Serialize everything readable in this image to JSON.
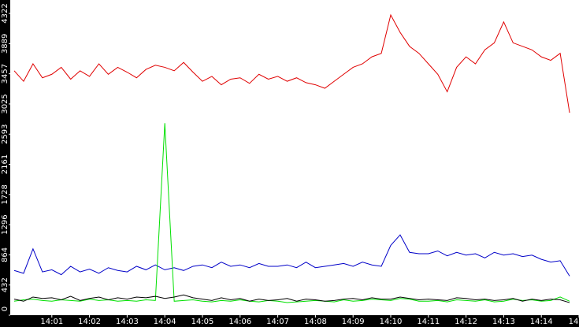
{
  "chart_data": {
    "type": "line",
    "x": [
      840,
      840.25,
      840.5,
      840.75,
      841,
      841.25,
      841.5,
      841.75,
      842,
      842.25,
      842.5,
      842.75,
      843,
      843.25,
      843.5,
      843.75,
      844,
      844.25,
      844.5,
      844.75,
      845,
      845.25,
      845.5,
      845.75,
      846,
      846.25,
      846.5,
      846.75,
      847,
      847.25,
      847.5,
      847.75,
      848,
      848.25,
      848.5,
      848.75,
      849,
      849.25,
      849.5,
      849.75,
      850,
      850.25,
      850.5,
      850.75,
      851,
      851.25,
      851.5,
      851.75,
      852,
      852.25,
      852.5,
      852.75,
      853,
      853.25,
      853.5,
      853.75,
      854,
      854.25,
      854.5,
      854.75
    ],
    "series": [
      {
        "color": "#e00000",
        "values": [
          3500,
          3350,
          3600,
          3400,
          3450,
          3550,
          3380,
          3500,
          3420,
          3600,
          3450,
          3550,
          3480,
          3400,
          3520,
          3580,
          3550,
          3500,
          3620,
          3480,
          3350,
          3420,
          3300,
          3380,
          3400,
          3320,
          3450,
          3380,
          3420,
          3350,
          3400,
          3330,
          3300,
          3250,
          3350,
          3450,
          3550,
          3600,
          3700,
          3750,
          4300,
          4050,
          3850,
          3750,
          3600,
          3450,
          3200,
          3550,
          3700,
          3600,
          3800,
          3900,
          4200,
          3900,
          3850,
          3800,
          3700,
          3650,
          3750,
          2900
        ]
      },
      {
        "color": "#0000c8",
        "values": [
          640,
          600,
          950,
          620,
          650,
          580,
          700,
          620,
          660,
          600,
          680,
          640,
          620,
          700,
          650,
          720,
          650,
          680,
          640,
          700,
          720,
          680,
          760,
          700,
          720,
          680,
          740,
          700,
          700,
          720,
          680,
          760,
          680,
          700,
          720,
          740,
          700,
          760,
          720,
          700,
          1000,
          1150,
          900,
          880,
          880,
          920,
          850,
          900,
          860,
          880,
          820,
          900,
          860,
          880,
          840,
          860,
          800,
          760,
          780,
          560
        ]
      },
      {
        "color": "#00e000",
        "values": [
          200,
          220,
          230,
          210,
          200,
          220,
          210,
          200,
          230,
          210,
          220,
          200,
          210,
          200,
          220,
          210,
          2750,
          200,
          210,
          220,
          200,
          190,
          210,
          200,
          220,
          200,
          190,
          210,
          200,
          180,
          190,
          200,
          210,
          200,
          190,
          220,
          200,
          210,
          230,
          220,
          210,
          240,
          230,
          200,
          200,
          210,
          190,
          220,
          210,
          200,
          220,
          190,
          200,
          230,
          210,
          220,
          200,
          210,
          260,
          200
        ]
      },
      {
        "color": "#000000",
        "values": [
          230,
          200,
          260,
          240,
          250,
          220,
          270,
          210,
          240,
          260,
          220,
          250,
          230,
          260,
          250,
          270,
          240,
          260,
          290,
          250,
          230,
          210,
          250,
          220,
          240,
          200,
          230,
          210,
          220,
          240,
          200,
          230,
          220,
          200,
          210,
          230,
          240,
          220,
          250,
          230,
          230,
          260,
          240,
          220,
          230,
          220,
          210,
          250,
          240,
          220,
          230,
          210,
          220,
          240,
          200,
          230,
          210,
          230,
          220,
          180
        ]
      }
    ],
    "xlim": [
      840,
      855
    ],
    "xticks": [
      {
        "value": 841,
        "label": "14:01"
      },
      {
        "value": 842,
        "label": "14:02"
      },
      {
        "value": 843,
        "label": "14:03"
      },
      {
        "value": 844,
        "label": "14:04"
      },
      {
        "value": 845,
        "label": "14:05"
      },
      {
        "value": 846,
        "label": "14:06"
      },
      {
        "value": 847,
        "label": "14:07"
      },
      {
        "value": 848,
        "label": "14:08"
      },
      {
        "value": 849,
        "label": "14:09"
      },
      {
        "value": 850,
        "label": "14:10"
      },
      {
        "value": 851,
        "label": "14:11"
      },
      {
        "value": 852,
        "label": "14:12"
      },
      {
        "value": 853,
        "label": "14:13"
      },
      {
        "value": 854,
        "label": "14:14"
      },
      {
        "value": 855,
        "label": "14"
      }
    ],
    "ylim": [
      0,
      4514
    ],
    "yticks": [
      0,
      432,
      864,
      1296,
      1728,
      2161,
      2593,
      3025,
      3457,
      3889,
      4322
    ]
  }
}
